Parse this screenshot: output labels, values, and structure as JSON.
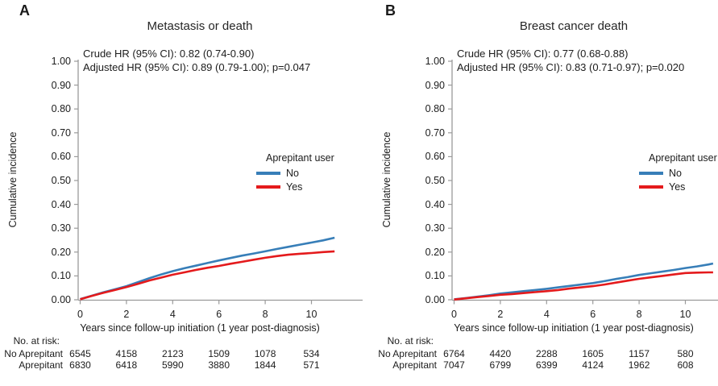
{
  "chart_data": [
    {
      "type": "line",
      "panel_label": "A",
      "title": "Metastasis or death",
      "annotations": [
        "Crude HR (95% CI): 0.82 (0.74-0.90)",
        "Adjusted HR (95% CI): 0.89 (0.79-1.00); p=0.047"
      ],
      "xlabel": "Years since follow-up initiation (1 year post-diagnosis)",
      "ylabel": "Cumulative incidence",
      "xlim": [
        0,
        11.2
      ],
      "ylim": [
        0,
        1.0
      ],
      "xticks": [
        0,
        2,
        4,
        6,
        8,
        10
      ],
      "yticks": [
        0.0,
        0.1,
        0.2,
        0.3,
        0.4,
        0.5,
        0.6,
        0.7,
        0.8,
        0.9,
        1.0
      ],
      "grid": false,
      "legend": {
        "title": "Aprepitant user",
        "position": "right-middle"
      },
      "series": [
        {
          "name": "No",
          "color": "#377EB8",
          "x": [
            0,
            0.5,
            1,
            1.5,
            2,
            2.5,
            3,
            3.5,
            4,
            4.5,
            5,
            5.5,
            6,
            6.5,
            7,
            7.5,
            8,
            8.5,
            9,
            9.5,
            10,
            10.5,
            11
          ],
          "y": [
            0.003,
            0.017,
            0.031,
            0.044,
            0.057,
            0.074,
            0.091,
            0.106,
            0.12,
            0.132,
            0.143,
            0.154,
            0.165,
            0.175,
            0.185,
            0.194,
            0.203,
            0.213,
            0.222,
            0.231,
            0.24,
            0.249,
            0.26
          ]
        },
        {
          "name": "Yes",
          "color": "#E41A1C",
          "x": [
            0,
            0.5,
            1,
            1.5,
            2,
            2.5,
            3,
            3.5,
            4,
            4.5,
            5,
            5.5,
            6,
            6.5,
            7,
            7.5,
            8,
            8.5,
            9,
            9.5,
            10,
            10.5,
            11
          ],
          "y": [
            0.002,
            0.016,
            0.029,
            0.041,
            0.053,
            0.067,
            0.081,
            0.093,
            0.105,
            0.115,
            0.125,
            0.134,
            0.142,
            0.151,
            0.159,
            0.168,
            0.176,
            0.183,
            0.189,
            0.193,
            0.196,
            0.2,
            0.203
          ]
        }
      ],
      "risk_table": {
        "label": "No. at risk:",
        "rows": [
          {
            "name": "No Aprepitant",
            "values": [
              6545,
              4158,
              2123,
              1509,
              1078,
              534
            ]
          },
          {
            "name": "Aprepitant",
            "values": [
              6830,
              6418,
              5990,
              3880,
              1844,
              571
            ]
          }
        ]
      },
      "axis_color": "#9a9a9a"
    },
    {
      "type": "line",
      "panel_label": "B",
      "title": "Breast cancer death",
      "annotations": [
        "Crude HR (95% CI): 0.77 (0.68-0.88)",
        "Adjusted HR (95% CI): 0.83 (0.71-0.97); p=0.020"
      ],
      "xlabel": "Years since follow-up initiation (1 year post-diagnosis)",
      "ylabel": "Cumulative incidence",
      "xlim": [
        0,
        11.2
      ],
      "ylim": [
        0,
        1.0
      ],
      "xticks": [
        0,
        2,
        4,
        6,
        8,
        10
      ],
      "yticks": [
        0.0,
        0.1,
        0.2,
        0.3,
        0.4,
        0.5,
        0.6,
        0.7,
        0.8,
        0.9,
        1.0
      ],
      "grid": false,
      "legend": {
        "title": "Aprepitant user",
        "position": "right-middle"
      },
      "series": [
        {
          "name": "No",
          "color": "#377EB8",
          "x": [
            0,
            0.5,
            1,
            1.5,
            2,
            2.5,
            3,
            3.5,
            4,
            4.5,
            5,
            5.5,
            6,
            6.5,
            7,
            7.5,
            8,
            8.5,
            9,
            9.5,
            10,
            10.5,
            11,
            11.2
          ],
          "y": [
            0.002,
            0.007,
            0.013,
            0.019,
            0.026,
            0.031,
            0.036,
            0.041,
            0.046,
            0.052,
            0.058,
            0.064,
            0.07,
            0.078,
            0.087,
            0.095,
            0.104,
            0.111,
            0.118,
            0.125,
            0.133,
            0.14,
            0.148,
            0.152
          ]
        },
        {
          "name": "Yes",
          "color": "#E41A1C",
          "x": [
            0,
            0.5,
            1,
            1.5,
            2,
            2.5,
            3,
            3.5,
            4,
            4.5,
            5,
            5.5,
            6,
            6.5,
            7,
            7.5,
            8,
            8.5,
            9,
            9.5,
            10,
            10.5,
            11,
            11.2
          ],
          "y": [
            0.001,
            0.006,
            0.011,
            0.016,
            0.021,
            0.024,
            0.028,
            0.032,
            0.036,
            0.041,
            0.047,
            0.052,
            0.057,
            0.064,
            0.072,
            0.08,
            0.088,
            0.094,
            0.1,
            0.106,
            0.112,
            0.114,
            0.115,
            0.115
          ]
        }
      ],
      "risk_table": {
        "label": "No. at risk:",
        "rows": [
          {
            "name": "No Aprepitant",
            "values": [
              6764,
              4420,
              2288,
              1605,
              1157,
              580
            ]
          },
          {
            "name": "Aprepitant",
            "values": [
              7047,
              6799,
              6399,
              4124,
              1962,
              608
            ]
          }
        ]
      },
      "axis_color": "#9a9a9a"
    }
  ]
}
